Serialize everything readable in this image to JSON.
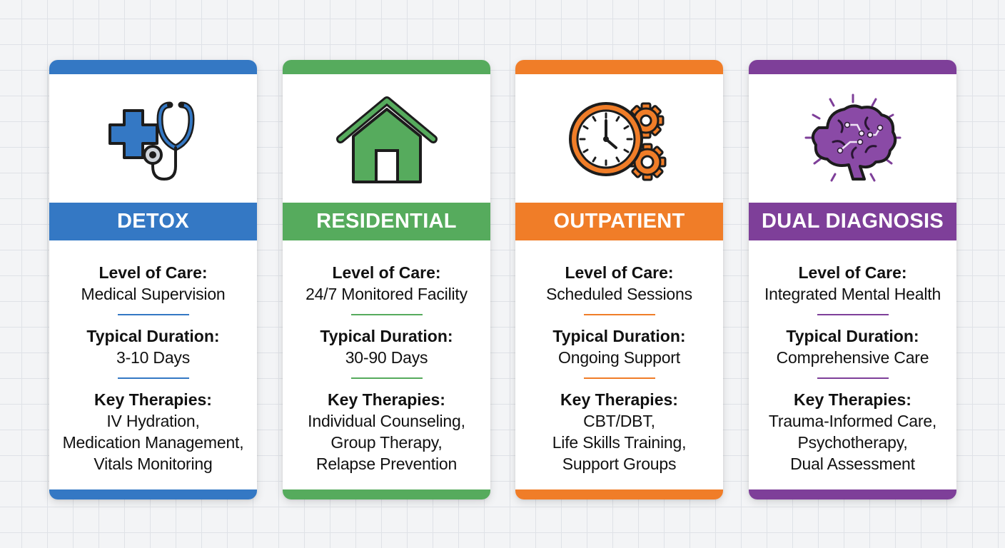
{
  "colors": {
    "detox": "#3478c4",
    "residential": "#56ab5d",
    "outpatient": "#f07d28",
    "dual": "#7e3f99"
  },
  "cards": [
    {
      "title": "DETOX",
      "icon": "medical-cross-stethoscope-icon",
      "care_label": "Level of Care:",
      "care_value": "Medical Supervision",
      "duration_label": "Typical Duration:",
      "duration_value": "3-10 Days",
      "therapies_label": "Key Therapies:",
      "therapies": [
        "IV Hydration,",
        "Medication Management,",
        "Vitals Monitoring"
      ]
    },
    {
      "title": "RESIDENTIAL",
      "icon": "house-icon",
      "care_label": "Level of Care:",
      "care_value": "24/7 Monitored Facility",
      "duration_label": "Typical Duration:",
      "duration_value": "30-90 Days",
      "therapies_label": "Key Therapies:",
      "therapies": [
        "Individual Counseling,",
        "Group Therapy,",
        "Relapse Prevention"
      ]
    },
    {
      "title": "OUTPATIENT",
      "icon": "clock-gears-icon",
      "care_label": "Level of Care:",
      "care_value": "Scheduled Sessions",
      "duration_label": "Typical Duration:",
      "duration_value": "Ongoing Support",
      "therapies_label": "Key Therapies:",
      "therapies": [
        "CBT/DBT,",
        "Life Skills Training,",
        "Support Groups"
      ]
    },
    {
      "title": "DUAL DIAGNOSIS",
      "icon": "brain-circuit-icon",
      "care_label": "Level of Care:",
      "care_value": "Integrated Mental Health",
      "duration_label": "Typical Duration:",
      "duration_value": "Comprehensive Care",
      "therapies_label": "Key Therapies:",
      "therapies": [
        "Trauma-Informed Care,",
        "Psychotherapy,",
        "Dual Assessment"
      ]
    }
  ]
}
